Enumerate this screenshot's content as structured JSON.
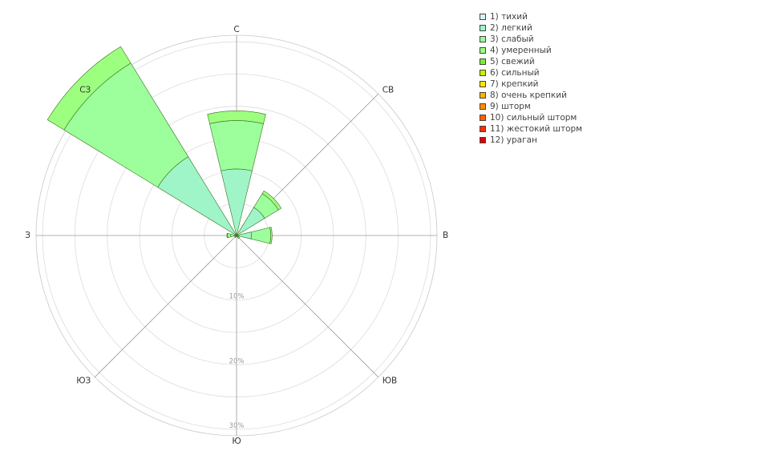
{
  "chart_data": {
    "type": "windrose",
    "directions": [
      "С",
      "СВ",
      "В",
      "ЮВ",
      "Ю",
      "ЮЗ",
      "З",
      "СЗ"
    ],
    "radial_ticks": [
      "10%",
      "20%",
      "30%"
    ],
    "radial_max": 31,
    "series": [
      {
        "name": "1) тихий",
        "color": "#d7f3fb",
        "values": [
          0.2,
          0.1,
          0.1,
          0.05,
          0.05,
          0.05,
          0.1,
          0.3
        ]
      },
      {
        "name": "2) легкий",
        "color": "#9ff5c8",
        "values": [
          10.1,
          5.0,
          2.2,
          0.3,
          0.1,
          0.2,
          0.8,
          14.0
        ]
      },
      {
        "name": "3) слабый",
        "color": "#9cff9c",
        "values": [
          7.5,
          2.5,
          3.0,
          0.2,
          0.0,
          0.1,
          0.5,
          17.0
        ]
      },
      {
        "name": "4) умеренный",
        "color": "#9dff80",
        "values": [
          1.5,
          0.5,
          0.2,
          0.0,
          0.0,
          0.0,
          0.1,
          3.0
        ]
      },
      {
        "name": "5) свежий",
        "color": "#7cef2c",
        "values": [
          0,
          0,
          0,
          0,
          0,
          0,
          0,
          0
        ]
      },
      {
        "name": "6) сильный",
        "color": "#c8f000",
        "values": [
          0,
          0,
          0,
          0,
          0,
          0,
          0,
          0
        ]
      },
      {
        "name": "7) крепкий",
        "color": "#ffe600",
        "values": [
          0,
          0,
          0,
          0,
          0,
          0,
          0,
          0
        ]
      },
      {
        "name": "8) очень крепкий",
        "color": "#ffb400",
        "values": [
          0,
          0,
          0,
          0,
          0,
          0,
          0,
          0
        ]
      },
      {
        "name": "9) шторм",
        "color": "#ff8c00",
        "values": [
          0,
          0,
          0,
          0,
          0,
          0,
          0,
          0
        ]
      },
      {
        "name": "10) сильный шторм",
        "color": "#ff6000",
        "values": [
          0,
          0,
          0,
          0,
          0,
          0,
          0,
          0
        ]
      },
      {
        "name": "11) жестокий шторм",
        "color": "#ff3000",
        "values": [
          0,
          0,
          0,
          0,
          0,
          0,
          0,
          0
        ]
      },
      {
        "name": "12) ураган",
        "color": "#dd0000",
        "values": [
          0,
          0,
          0,
          0,
          0,
          0,
          0,
          0
        ]
      }
    ]
  }
}
